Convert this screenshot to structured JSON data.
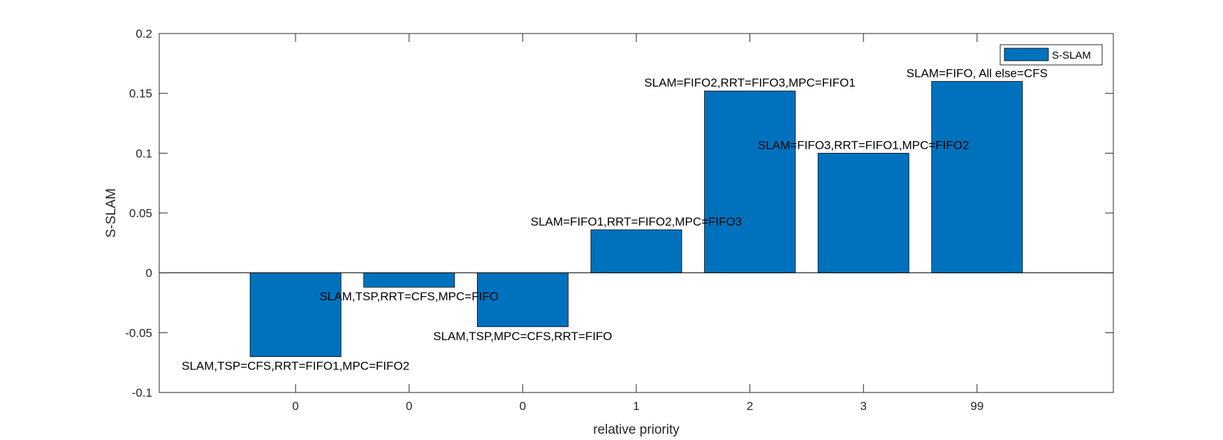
{
  "chart_data": {
    "type": "bar",
    "categories": [
      "0",
      "0",
      "0",
      "1",
      "2",
      "3",
      "99"
    ],
    "series": [
      {
        "name": "S-SLAM",
        "values": [
          -0.07,
          -0.012,
          -0.045,
          0.036,
          0.152,
          0.1,
          0.16
        ],
        "color": "#0072BD"
      }
    ],
    "bar_labels": [
      "SLAM,TSP=CFS,RRT=FIFO1,MPC=FIFO2",
      "SLAM,TSP,RRT=CFS,MPC=FIFO",
      "SLAM,TSP,MPC=CFS,RRT=FIFO",
      "SLAM=FIFO1,RRT=FIFO2,MPC=FIFO3",
      "SLAM=FIFO2,RRT=FIFO3,MPC=FIFO1",
      "SLAM=FIFO3,RRT=FIFO1,MPC=FIFO2",
      "SLAM=FIFO, All else=CFS"
    ],
    "xlabel": "relative priority",
    "ylabel": "S-SLAM",
    "ylim": [
      -0.1,
      0.2
    ],
    "yticks": [
      "-0.1",
      "-0.05",
      "0",
      "0.05",
      "0.1",
      "0.15",
      "0.2"
    ],
    "legend_position": "top-right",
    "grid": false
  }
}
